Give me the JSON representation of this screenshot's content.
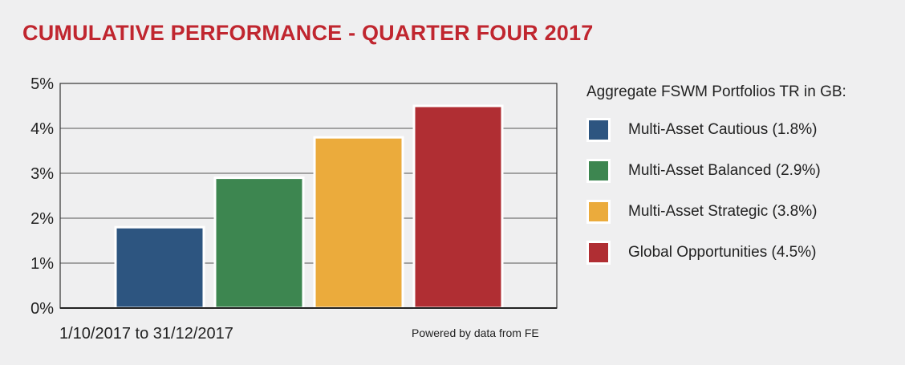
{
  "header": {
    "title": "CUMULATIVE PERFORMANCE - QUARTER FOUR 2017"
  },
  "footer": {
    "period": "1/10/2017 to 31/12/2017",
    "source": "Powered by data from FE"
  },
  "legend": {
    "title": "Aggregate FSWM Portfolios TR in GB:",
    "items": [
      {
        "label": "Multi-Asset Cautious (1.8%)",
        "color": "#2d5580"
      },
      {
        "label": "Multi-Asset Balanced (2.9%)",
        "color": "#3d8650"
      },
      {
        "label": "Multi-Asset Strategic (3.8%)",
        "color": "#ebab3c"
      },
      {
        "label": "Global Opportunities (4.5%)",
        "color": "#b02e33"
      }
    ]
  },
  "chart_data": {
    "type": "bar",
    "categories": [
      "Multi-Asset Cautious",
      "Multi-Asset Balanced",
      "Multi-Asset Strategic",
      "Global Opportunities"
    ],
    "values": [
      1.8,
      2.9,
      3.8,
      4.5
    ],
    "colors": [
      "#2d5580",
      "#3d8650",
      "#ebab3c",
      "#b02e33"
    ],
    "title": "CUMULATIVE PERFORMANCE - QUARTER FOUR 2017",
    "xlabel": "",
    "ylabel": "",
    "ylim": [
      0,
      5
    ],
    "yticks": [
      "0%",
      "1%",
      "2%",
      "3%",
      "4%",
      "5%"
    ],
    "grid": true,
    "legend_position": "right"
  }
}
